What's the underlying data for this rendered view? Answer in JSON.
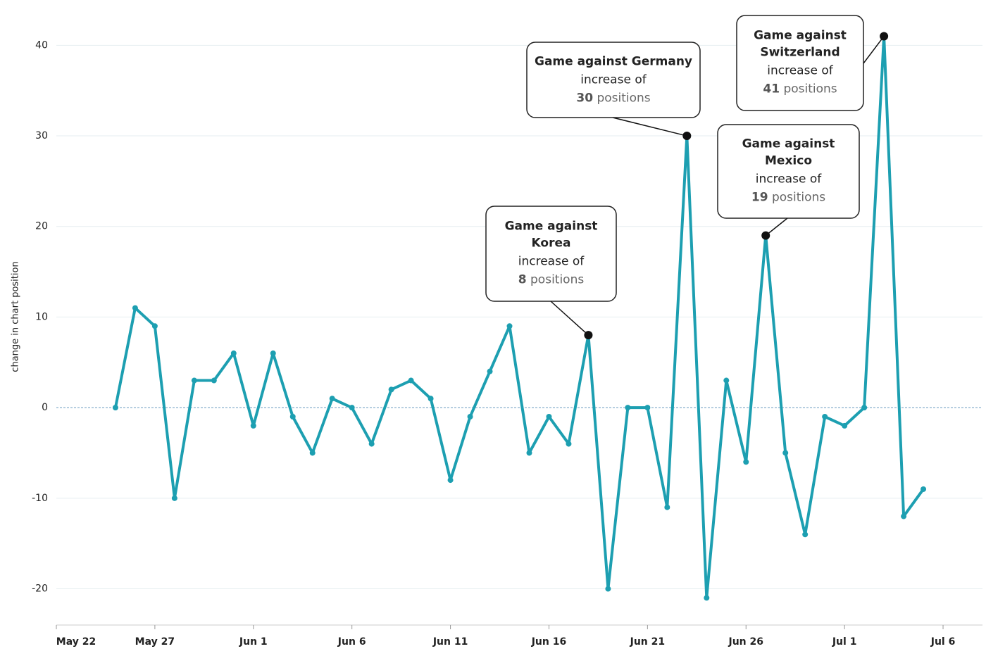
{
  "chart_data": {
    "type": "line",
    "y_label": "change in chart position",
    "x": [
      "May 25",
      "May 26",
      "May 27",
      "May 28",
      "May 29",
      "May 30",
      "May 31",
      "Jun 1",
      "Jun 2",
      "Jun 3",
      "Jun 4",
      "Jun 5",
      "Jun 6",
      "Jun 7",
      "Jun 8",
      "Jun 9",
      "Jun 10",
      "Jun 11",
      "Jun 12",
      "Jun 13",
      "Jun 14",
      "Jun 15",
      "Jun 16",
      "Jun 17",
      "Jun 18",
      "Jun 19",
      "Jun 20",
      "Jun 21",
      "Jun 22",
      "Jun 23",
      "Jun 24",
      "Jun 25",
      "Jun 26",
      "Jun 27",
      "Jun 28",
      "Jun 29",
      "Jun 30",
      "Jul 1",
      "Jul 2",
      "Jul 3",
      "Jul 4",
      "Jul 5"
    ],
    "values": [
      0,
      11,
      9,
      -10,
      3,
      3,
      6,
      -2,
      6,
      -1,
      -5,
      1,
      0,
      -4,
      2,
      3,
      1,
      -8,
      -1,
      4,
      9,
      -5,
      -1,
      -4,
      8,
      -20,
      0,
      0,
      -11,
      30,
      -21,
      3,
      -6,
      19,
      -5,
      -14,
      -1,
      -2,
      0,
      41,
      -12,
      -9
    ],
    "color": "#1d9fb1",
    "xlim": [
      "May 22",
      "Jul 8"
    ],
    "xticks": [
      "May 22",
      "May 27",
      "Jun 1",
      "Jun 6",
      "Jun 11",
      "Jun 16",
      "Jun 21",
      "Jun 26",
      "Jul 1",
      "Jul 6"
    ],
    "ylim": [
      -24,
      45
    ],
    "yticks": [
      -20,
      -10,
      0,
      10,
      20,
      30,
      40
    ],
    "grid": true,
    "annotations": [
      {
        "x": "Jun 18",
        "title": [
          "Game against",
          "Korea"
        ],
        "text": "increase of",
        "unit": "positions"
      },
      {
        "x": "Jun 23",
        "title": [
          "Game against Germany"
        ],
        "text": "increase of",
        "unit": "positions"
      },
      {
        "x": "Jun 27",
        "title": [
          "Game against",
          "Mexico"
        ],
        "text": "increase of",
        "unit": "positions"
      },
      {
        "x": "Jul 3",
        "title": [
          "Game against",
          "Switzerland"
        ],
        "text": "increase of",
        "unit": "positions"
      }
    ]
  }
}
